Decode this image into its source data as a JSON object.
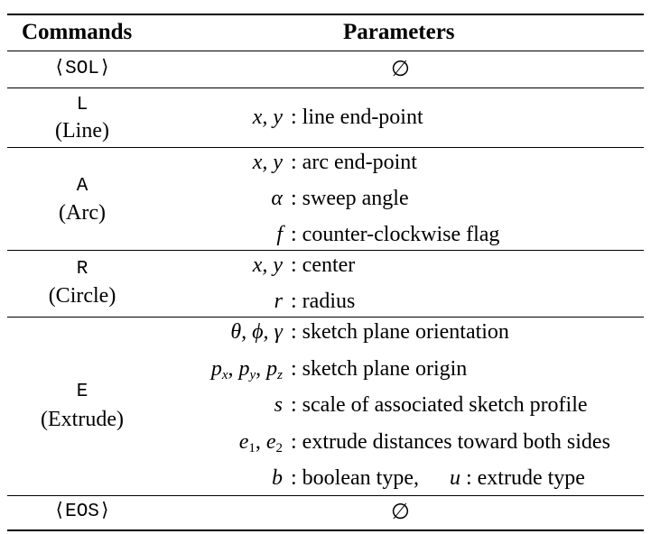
{
  "header": {
    "commands": "Commands",
    "parameters": "Parameters"
  },
  "rows": [
    {
      "command": "⟨SOL⟩",
      "name": "",
      "params": [
        {
          "symbol": "",
          "desc": "∅"
        }
      ]
    },
    {
      "command": "L",
      "name": "(Line)",
      "params": [
        {
          "symbol": "x, y",
          "desc": "line end-point"
        }
      ]
    },
    {
      "command": "A",
      "name": "(Arc)",
      "params": [
        {
          "symbol": "x, y",
          "desc": "arc end-point"
        },
        {
          "symbol": "α",
          "desc": "sweep angle"
        },
        {
          "symbol": "f",
          "desc": "counter-clockwise flag"
        }
      ]
    },
    {
      "command": "R",
      "name": "(Circle)",
      "params": [
        {
          "symbol": "x, y",
          "desc": "center"
        },
        {
          "symbol": "r",
          "desc": "radius"
        }
      ]
    },
    {
      "command": "E",
      "name": "(Extrude)",
      "params": [
        {
          "symbol": "θ, ϕ, γ",
          "desc": "sketch plane orientation"
        },
        {
          "symbol": "px, py, pz",
          "desc": "sketch plane origin"
        },
        {
          "symbol": "s",
          "desc": "scale of associated sketch profile"
        },
        {
          "symbol": "e1, e2",
          "desc": "extrude distances toward both sides"
        },
        {
          "symbol": "b",
          "desc": "boolean type,",
          "symbol2": "u",
          "desc2": "extrude type"
        }
      ]
    },
    {
      "command": "⟨EOS⟩",
      "name": "",
      "params": [
        {
          "symbol": "",
          "desc": "∅"
        }
      ]
    }
  ]
}
